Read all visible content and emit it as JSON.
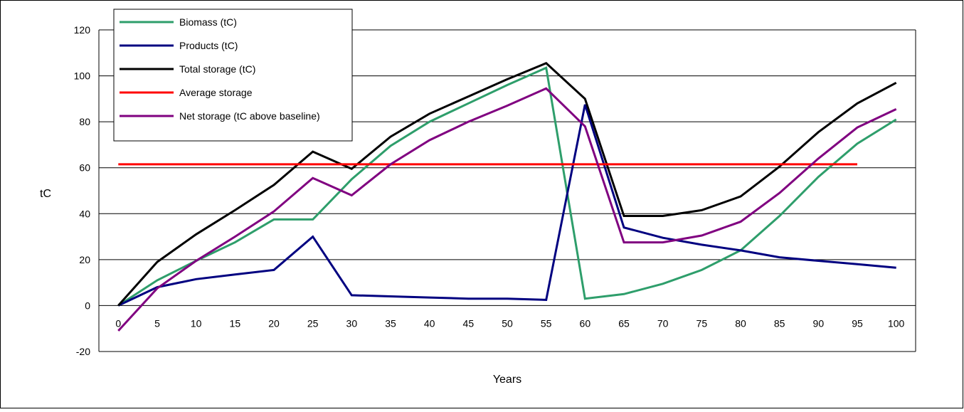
{
  "chart_data": {
    "type": "line",
    "title": "",
    "xlabel": "Years",
    "ylabel": "tC",
    "ylim": [
      -20,
      120
    ],
    "yticks": [
      -20,
      0,
      20,
      40,
      60,
      80,
      100,
      120
    ],
    "grid": "horizontal",
    "legend_position": "top-left",
    "categories": [
      "0",
      "5",
      "10",
      "15",
      "20",
      "25",
      "30",
      "35",
      "40",
      "45",
      "50",
      "55",
      "60",
      "65",
      "70",
      "75",
      "80",
      "85",
      "90",
      "95",
      "100"
    ],
    "series": [
      {
        "name": "Biomass (tC)",
        "color": "#2e9e6b",
        "values": [
          0,
          11,
          19.5,
          27.5,
          37.5,
          37.5,
          55,
          69.5,
          80,
          88,
          96,
          103.5,
          3,
          5,
          9.5,
          15.5,
          24,
          39,
          56,
          70.5,
          81
        ]
      },
      {
        "name": "Products (tC)",
        "color": "#000080",
        "values": [
          0,
          8,
          11.5,
          13.5,
          15.5,
          30,
          4.5,
          4,
          3.5,
          3,
          3,
          2.5,
          87.5,
          34,
          29.5,
          26.5,
          24,
          21,
          19.5,
          18,
          16.5
        ]
      },
      {
        "name": "Total storage (tC)",
        "color": "#000000",
        "values": [
          0,
          19,
          31,
          41.5,
          52.5,
          67,
          59.5,
          73.5,
          83.5,
          91,
          98.5,
          105.5,
          90,
          39,
          39,
          41.5,
          47.5,
          60.5,
          75.5,
          88,
          97
        ]
      },
      {
        "name": "Average storage",
        "color": "#ff0000",
        "values": [
          61.5,
          61.5,
          61.5,
          61.5,
          61.5,
          61.5,
          61.5,
          61.5,
          61.5,
          61.5,
          61.5,
          61.5,
          61.5,
          61.5,
          61.5,
          61.5,
          61.5,
          61.5,
          61.5,
          61.5,
          null
        ]
      },
      {
        "name": "Net storage (tC above baseline)",
        "color": "#800080",
        "values": [
          -11,
          7.5,
          19.5,
          30,
          41,
          55.5,
          48,
          61.5,
          72,
          80,
          87,
          94.5,
          78,
          27.5,
          27.5,
          30.5,
          36.5,
          49,
          64,
          77.5,
          85.5
        ]
      }
    ]
  }
}
